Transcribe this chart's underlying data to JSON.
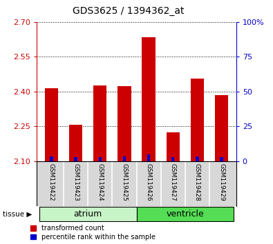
{
  "title": "GDS3625 / 1394362_at",
  "samples": [
    "GSM119422",
    "GSM119423",
    "GSM119424",
    "GSM119425",
    "GSM119426",
    "GSM119427",
    "GSM119428",
    "GSM119429"
  ],
  "red_values": [
    2.415,
    2.258,
    2.425,
    2.422,
    2.635,
    2.225,
    2.455,
    2.385
  ],
  "blue_values": [
    3.5,
    3.0,
    3.0,
    3.5,
    5.0,
    3.0,
    3.5,
    3.0
  ],
  "ylim_left": [
    2.1,
    2.7
  ],
  "ylim_right": [
    0,
    100
  ],
  "yticks_left": [
    2.1,
    2.25,
    2.4,
    2.55,
    2.7
  ],
  "yticks_right": [
    0,
    25,
    50,
    75,
    100
  ],
  "tissue_groups": [
    {
      "label": "atrium",
      "start": 0,
      "end": 4,
      "color": "#c8f5c8"
    },
    {
      "label": "ventricle",
      "start": 4,
      "end": 8,
      "color": "#55dd55"
    }
  ],
  "bar_bottom": 2.1,
  "bar_width": 0.55,
  "red_color": "#cc0000",
  "blue_color": "#0000cc",
  "grid_color": "#000000",
  "bg_color": "#d8d8d8",
  "left_axis_color": "#cc0000",
  "right_axis_color": "#0000cc",
  "legend_red_label": "transformed count",
  "legend_blue_label": "percentile rank within the sample",
  "blue_bar_width": 0.12
}
